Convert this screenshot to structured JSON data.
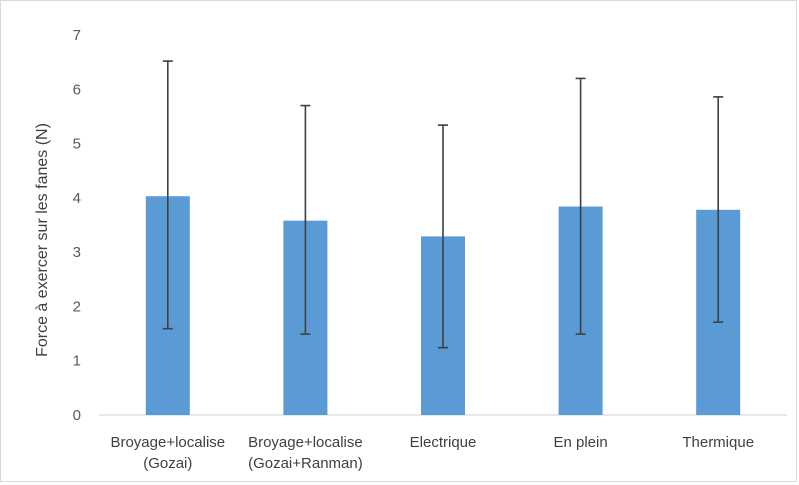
{
  "chart_data": {
    "type": "bar",
    "title": "",
    "xlabel": "",
    "ylabel": "Force à exercer sur les fanes (N)",
    "ylim": [
      0,
      7
    ],
    "yticks": [
      0,
      1,
      2,
      3,
      4,
      5,
      6,
      7
    ],
    "grid": false,
    "legend": "none",
    "categories": [
      [
        "Broyage+localise",
        "(Gozai)"
      ],
      [
        "Broyage+localise",
        "(Gozai+Ranman)"
      ],
      [
        "Electrique"
      ],
      [
        "En plein"
      ],
      [
        "Thermique"
      ]
    ],
    "values": [
      4.03,
      3.58,
      3.29,
      3.84,
      3.78
    ],
    "error_low": [
      1.59,
      1.49,
      1.24,
      1.49,
      1.71
    ],
    "error_high": [
      6.52,
      5.7,
      5.34,
      6.2,
      5.86
    ],
    "colors": {
      "bar": "#5b9bd5",
      "error_bar": "#404040",
      "axis": "#d9d9d9"
    }
  }
}
